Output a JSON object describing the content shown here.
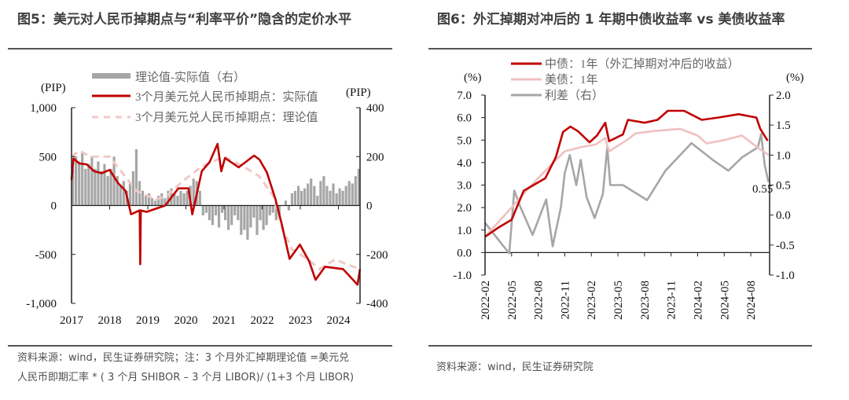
{
  "left": {
    "title": "图5：美元对人民币掉期点与“利率平价”隐含的定价水平",
    "source_line1": "资料来源：wind，民生证券研究院；注：3 个月外汇掉期理论值 =美元兑",
    "source_line2": "人民币即期汇率 * ( 3 个月 SHIBOR – 3 个月 LIBOR)/ (1+3 个月 LIBOR)"
  },
  "right": {
    "title": "图6：外汇掉期对冲后的 1 年期中债收益率 vs 美债收益率",
    "source": "资料来源：wind，民生证券研究院"
  },
  "chart_data": [
    {
      "type": "line",
      "ylabel": "(PIP)",
      "y2label": "(PIP)",
      "ylim": [
        -1000,
        1000
      ],
      "y2lim": [
        -400,
        400
      ],
      "yticks": [
        "1,000",
        "500",
        "0",
        "-500",
        "-1,000"
      ],
      "y2ticks": [
        "400",
        "200",
        "0",
        "-200",
        "-400"
      ],
      "xticks": [
        "2017",
        "2018",
        "2019",
        "2020",
        "2021",
        "2022",
        "2023",
        "2024"
      ],
      "grid": false,
      "legend_position": "top",
      "colors": {
        "bars": "#a6a6a6",
        "actual": "#c00000",
        "theory": "#f0c8c8"
      },
      "series": [
        {
          "name": "理论值-实际值（右）",
          "kind": "bar",
          "axis": "right",
          "start": "2017-01",
          "values": [
            150,
            200,
            180,
            220,
            150,
            170,
            200,
            150,
            180,
            140,
            170,
            120,
            150,
            200,
            120,
            80,
            100,
            60,
            90,
            140,
            230,
            100,
            60,
            40,
            50,
            30,
            20,
            40,
            50,
            30,
            60,
            70,
            50,
            40,
            60,
            50,
            60,
            80,
            110,
            100,
            60,
            -40,
            -30,
            -60,
            -80,
            -40,
            -90,
            -30,
            -60,
            -100,
            -80,
            -40,
            -60,
            -120,
            -100,
            -140,
            -90,
            -50,
            -120,
            -60,
            -100,
            -80,
            -40,
            -30,
            -60,
            -50,
            0,
            20,
            -20,
            50,
            60,
            80,
            60,
            70,
            90,
            110,
            80,
            40,
            100,
            120,
            80,
            60,
            90,
            50,
            70,
            60,
            80,
            100,
            90,
            120,
            150
          ]
        },
        {
          "name": "3个月美元兑人民币掉期点：实际值",
          "kind": "line",
          "axis": "left",
          "points": [
            [
              "2017-01-01",
              260
            ],
            [
              "2017-01-20",
              480
            ],
            [
              "2017-03-15",
              430
            ],
            [
              "2017-05-25",
              420
            ],
            [
              "2017-08-05",
              350
            ],
            [
              "2017-10-15",
              330
            ],
            [
              "2018-01-01",
              364
            ],
            [
              "2018-03-20",
              230
            ],
            [
              "2018-06-01",
              150
            ],
            [
              "2018-07-23",
              -90
            ],
            [
              "2018-10-15",
              -50
            ],
            [
              "2018-10-20",
              -600
            ],
            [
              "2018-10-25",
              -50
            ],
            [
              "2018-12-20",
              -65
            ],
            [
              "2019-06-15",
              0
            ],
            [
              "2019-10-20",
              175
            ],
            [
              "2020-01-25",
              175
            ],
            [
              "2020-03-01",
              -90
            ],
            [
              "2020-06-01",
              350
            ],
            [
              "2020-08-15",
              445
            ],
            [
              "2020-10-30",
              630
            ],
            [
              "2020-12-05",
              350
            ],
            [
              "2021-01-10",
              485
            ],
            [
              "2021-05-20",
              390
            ],
            [
              "2021-10-15",
              510
            ],
            [
              "2021-12-05",
              470
            ],
            [
              "2022-02-15",
              340
            ],
            [
              "2022-05-05",
              70
            ],
            [
              "2022-07-01",
              -170
            ],
            [
              "2022-09-20",
              -545
            ],
            [
              "2022-12-28",
              -400
            ],
            [
              "2023-03-25",
              -570
            ],
            [
              "2023-05-25",
              -760
            ],
            [
              "2023-08-25",
              -626
            ],
            [
              "2024-02-15",
              -650
            ],
            [
              "2024-07-01",
              -810
            ],
            [
              "2024-07-25",
              -650
            ]
          ]
        },
        {
          "name": "3个月美元兑人民币掉期点：理论值",
          "kind": "dashed-line",
          "axis": "left",
          "points": [
            [
              "2017-01-01",
              500
            ],
            [
              "2017-03-15",
              560
            ],
            [
              "2017-07-01",
              500
            ],
            [
              "2018-01-01",
              500
            ],
            [
              "2018-05-25",
              300
            ],
            [
              "2018-09-15",
              150
            ],
            [
              "2019-03-15",
              60
            ],
            [
              "2019-07-01",
              100
            ],
            [
              "2019-12-01",
              250
            ],
            [
              "2020-06-01",
              400
            ],
            [
              "2021-01-01",
              500
            ],
            [
              "2021-07-01",
              400
            ],
            [
              "2021-12-01",
              300
            ],
            [
              "2022-04-15",
              100
            ],
            [
              "2022-07-15",
              -250
            ],
            [
              "2022-10-15",
              -450
            ],
            [
              "2023-03-15",
              -550
            ],
            [
              "2023-07-01",
              -650
            ],
            [
              "2023-12-01",
              -550
            ],
            [
              "2024-03-15",
              -600
            ],
            [
              "2024-07-25",
              -650
            ]
          ]
        }
      ]
    },
    {
      "type": "line",
      "ylabel": "(%)",
      "y2label": "(%)",
      "ylim": [
        -1.0,
        7.0
      ],
      "y2lim": [
        -1.0,
        2.0
      ],
      "yticks": [
        "7.0",
        "6.0",
        "5.0",
        "4.0",
        "3.0",
        "2.0",
        "1.0",
        "0.0",
        "-1.0"
      ],
      "y2ticks": [
        "2.0",
        "1.5",
        "1.0",
        "0.5",
        "0.0",
        "-0.5",
        "-1.0"
      ],
      "xticks": [
        "2022-02",
        "2022-05",
        "2022-08",
        "2022-11",
        "2023-02",
        "2023-05",
        "2023-08",
        "2023-11",
        "2024-02",
        "2024-05",
        "2024-08"
      ],
      "annotation": "0.55",
      "grid": false,
      "legend_position": "top",
      "colors": {
        "cn": "#c00000",
        "us": "#f0c0c0",
        "spread": "#a6a6a6"
      },
      "series": [
        {
          "name": "中债：1年（外汇掉期对冲后的收益）",
          "axis": "left",
          "points": [
            [
              "2022-02-01",
              0.7
            ],
            [
              "2022-03-15",
              1.1
            ],
            [
              "2022-05-01",
              1.46
            ],
            [
              "2022-06-12",
              2.75
            ],
            [
              "2022-08-25",
              3.3
            ],
            [
              "2022-10-01",
              4.25
            ],
            [
              "2022-10-25",
              5.36
            ],
            [
              "2022-11-20",
              5.6
            ],
            [
              "2022-12-15",
              5.4
            ],
            [
              "2023-01-25",
              4.9
            ],
            [
              "2023-02-20",
              5.2
            ],
            [
              "2023-03-18",
              5.77
            ],
            [
              "2023-04-01",
              4.95
            ],
            [
              "2023-05-18",
              5.25
            ],
            [
              "2023-06-05",
              5.9
            ],
            [
              "2023-08-01",
              5.77
            ],
            [
              "2023-09-15",
              5.9
            ],
            [
              "2023-10-20",
              6.3
            ],
            [
              "2023-12-15",
              6.3
            ],
            [
              "2024-02-15",
              5.9
            ],
            [
              "2024-04-10",
              6.0
            ],
            [
              "2024-06-20",
              6.15
            ],
            [
              "2024-08-20",
              6.0
            ],
            [
              "2024-09-03",
              5.5
            ],
            [
              "2024-09-28",
              4.97
            ]
          ]
        },
        {
          "name": "美债：1年",
          "axis": "left",
          "points": [
            [
              "2022-02-01",
              0.7
            ],
            [
              "2022-05-01",
              2.0
            ],
            [
              "2022-07-01",
              2.9
            ],
            [
              "2022-09-15",
              3.9
            ],
            [
              "2022-11-01",
              4.5
            ],
            [
              "2023-01-01",
              4.7
            ],
            [
              "2023-02-15",
              4.8
            ],
            [
              "2023-03-18",
              5.1
            ],
            [
              "2023-04-01",
              4.5
            ],
            [
              "2023-06-01",
              5.0
            ],
            [
              "2023-07-01",
              5.3
            ],
            [
              "2023-09-01",
              5.4
            ],
            [
              "2023-12-01",
              5.5
            ],
            [
              "2024-02-01",
              5.2
            ],
            [
              "2024-03-01",
              4.85
            ],
            [
              "2024-05-01",
              5.0
            ],
            [
              "2024-07-01",
              5.2
            ],
            [
              "2024-09-01",
              4.6
            ],
            [
              "2024-10-01",
              4.35
            ]
          ]
        },
        {
          "name": "利差（右）",
          "axis": "right",
          "points": [
            [
              "2022-02-01",
              -0.13
            ],
            [
              "2022-04-23",
              -0.64
            ],
            [
              "2022-05-10",
              0.41
            ],
            [
              "2022-06-01",
              0.13
            ],
            [
              "2022-07-12",
              -0.33
            ],
            [
              "2022-08-28",
              0.26
            ],
            [
              "2022-09-20",
              -0.52
            ],
            [
              "2022-10-18",
              0.13
            ],
            [
              "2022-11-01",
              0.7
            ],
            [
              "2022-11-18",
              1.0
            ],
            [
              "2022-12-10",
              0.5
            ],
            [
              "2022-12-25",
              0.92
            ],
            [
              "2023-01-15",
              0.3
            ],
            [
              "2023-02-12",
              -0.05
            ],
            [
              "2023-03-10",
              0.35
            ],
            [
              "2023-03-25",
              1.13
            ],
            [
              "2023-04-05",
              0.5
            ],
            [
              "2023-05-18",
              0.5
            ],
            [
              "2023-08-10",
              0.25
            ],
            [
              "2023-10-12",
              0.74
            ],
            [
              "2024-01-10",
              1.2
            ],
            [
              "2024-03-22",
              0.92
            ],
            [
              "2024-05-15",
              0.74
            ],
            [
              "2024-07-01",
              0.96
            ],
            [
              "2024-08-25",
              1.13
            ],
            [
              "2024-09-06",
              1.35
            ],
            [
              "2024-09-18",
              0.83
            ],
            [
              "2024-10-01",
              0.55
            ]
          ]
        }
      ]
    }
  ]
}
